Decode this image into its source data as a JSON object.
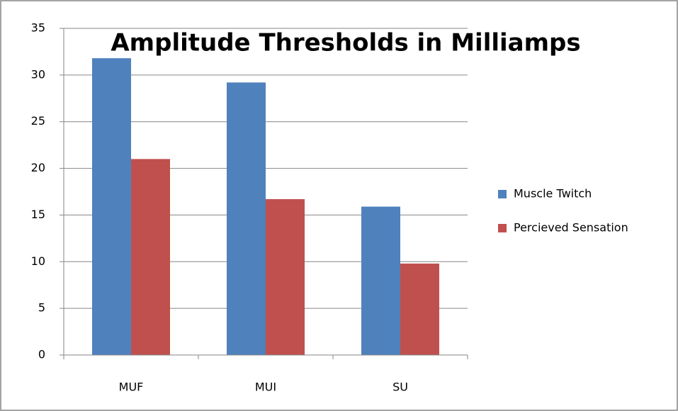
{
  "chart_data": {
    "type": "bar",
    "title": "Amplitude Thresholds in Milliamps",
    "categories": [
      "MUF",
      "MUI",
      "SU"
    ],
    "series": [
      {
        "name": "Muscle Twitch",
        "color": "#4f81bd",
        "values": [
          31.8,
          29.2,
          15.9
        ]
      },
      {
        "name": "Percieved Sensation",
        "color": "#c0504d",
        "values": [
          21,
          16.7,
          9.8
        ]
      }
    ],
    "ylim": [
      0,
      35
    ],
    "yticks": [
      0,
      5,
      10,
      15,
      20,
      25,
      30,
      35
    ],
    "grid": true,
    "legend": "right"
  }
}
